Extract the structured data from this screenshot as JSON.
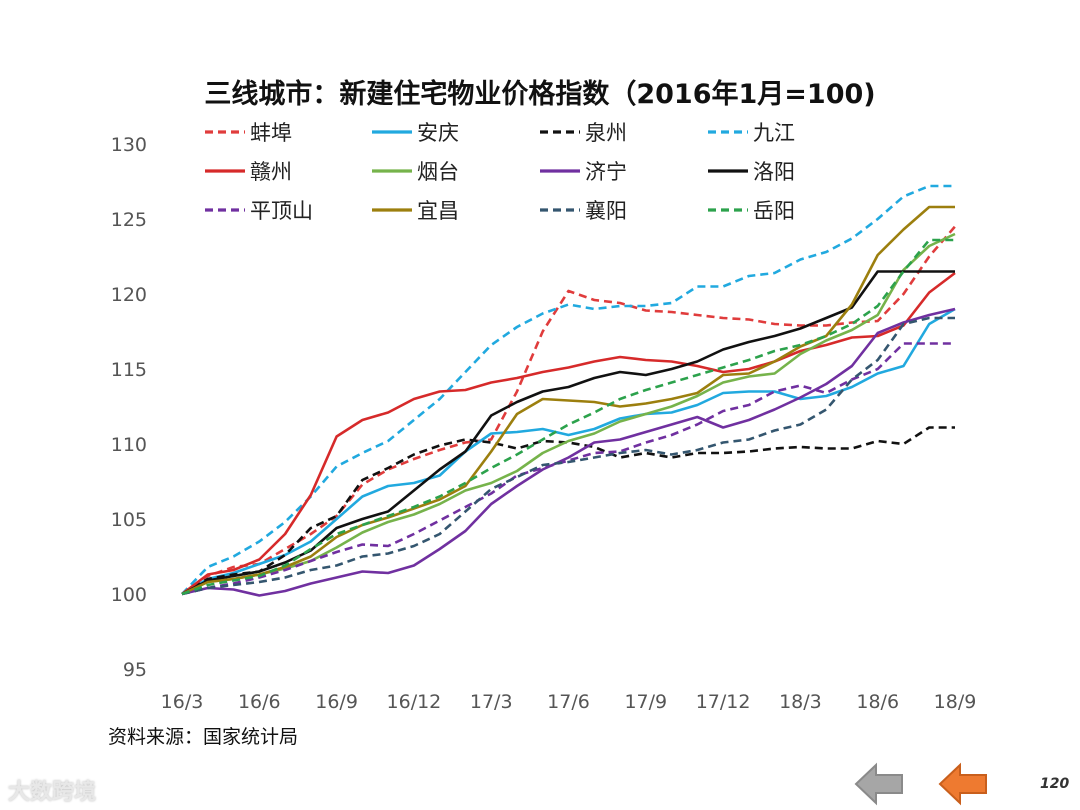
{
  "slide": {
    "title": "三线城市：新建住宅物业价格指数（2016年1月=100)",
    "source": "资料来源：国家统计局",
    "page_number": "120",
    "watermark": "大数跨境"
  },
  "nav": {
    "prev_icon": "arrow-left-icon",
    "next_icon": "arrow-left-icon",
    "prev_color": "#a6a6a6",
    "next_color": "#ee7a30"
  },
  "chart_data": {
    "type": "line",
    "title": "三线城市：新建住宅物业价格指数（2016年1月=100)",
    "xlabel": "",
    "ylabel": "",
    "ylim": [
      95,
      130
    ],
    "yticks": [
      95,
      100,
      105,
      110,
      115,
      120,
      125,
      130
    ],
    "grid": false,
    "legend_position": "top",
    "x": [
      "16/3",
      "16/4",
      "16/5",
      "16/6",
      "16/7",
      "16/8",
      "16/9",
      "16/10",
      "16/11",
      "16/12",
      "17/1",
      "17/2",
      "17/3",
      "17/4",
      "17/5",
      "17/6",
      "17/7",
      "17/8",
      "17/9",
      "17/10",
      "17/11",
      "17/12",
      "18/1",
      "18/2",
      "18/3",
      "18/4",
      "18/5",
      "18/6",
      "18/7",
      "18/8",
      "18/9"
    ],
    "xtick_labels": [
      "16/3",
      "16/6",
      "16/9",
      "16/12",
      "17/3",
      "17/6",
      "17/9",
      "17/12",
      "18/3",
      "18/6",
      "18/9"
    ],
    "series": [
      {
        "name": "蚌埠",
        "color": "#e03c3c",
        "dash": true,
        "values": [
          100,
          101.2,
          101.8,
          102,
          103,
          104,
          105.2,
          107.3,
          108.3,
          109,
          109.6,
          110.1,
          110.3,
          113.5,
          117.5,
          120.2,
          119.6,
          119.4,
          118.9,
          118.8,
          118.6,
          118.4,
          118.3,
          118,
          117.9,
          117.9,
          118.1,
          118.2,
          120,
          122.5,
          124.5
        ]
      },
      {
        "name": "安庆",
        "color": "#21a9df",
        "dash": false,
        "values": [
          100,
          101,
          101.4,
          102,
          102.6,
          103.5,
          105,
          106.5,
          107.2,
          107.4,
          107.9,
          109.5,
          110.7,
          110.8,
          111,
          110.6,
          111,
          111.7,
          112,
          112.1,
          112.6,
          113.4,
          113.5,
          113.5,
          113,
          113.2,
          113.8,
          114.7,
          115.2,
          118,
          119
        ]
      },
      {
        "name": "泉州",
        "color": "#111111",
        "dash": true,
        "values": [
          100,
          101,
          101.3,
          101.5,
          102.6,
          104.4,
          105.2,
          107.6,
          108.4,
          109.3,
          109.9,
          110.3,
          110.1,
          109.7,
          110.2,
          110.1,
          109.8,
          109.1,
          109.4,
          109.1,
          109.4,
          109.4,
          109.5,
          109.7,
          109.8,
          109.7,
          109.7,
          110.2,
          110,
          111.1,
          111.1
        ]
      },
      {
        "name": "九江",
        "color": "#21a9df",
        "dash": true,
        "values": [
          100,
          101.8,
          102.5,
          103.5,
          104.8,
          106.5,
          108.5,
          109.4,
          110.2,
          111.6,
          113,
          114.8,
          116.6,
          117.8,
          118.7,
          119.3,
          119,
          119.2,
          119.2,
          119.4,
          120.5,
          120.5,
          121.2,
          121.4,
          122.3,
          122.8,
          123.7,
          125,
          126.5,
          127.2,
          127.2
        ]
      },
      {
        "name": "赣州",
        "color": "#d62a2a",
        "dash": false,
        "values": [
          100,
          101.3,
          101.6,
          102.3,
          104,
          106.6,
          110.5,
          111.6,
          112.1,
          113,
          113.5,
          113.6,
          114.1,
          114.4,
          114.8,
          115.1,
          115.5,
          115.8,
          115.6,
          115.5,
          115.2,
          114.8,
          115,
          115.5,
          116.2,
          116.6,
          117.1,
          117.2,
          117.9,
          120.1,
          121.4
        ]
      },
      {
        "name": "烟台",
        "color": "#76b34b",
        "dash": false,
        "values": [
          100,
          100.8,
          101,
          101.3,
          101.7,
          102.2,
          103.1,
          104.1,
          104.8,
          105.3,
          106,
          106.9,
          107.4,
          108.2,
          109.4,
          110.2,
          110.7,
          111.5,
          112,
          112.5,
          113.2,
          114.1,
          114.5,
          114.7,
          116,
          116.9,
          117.6,
          118.6,
          121.6,
          123.2,
          124
        ]
      },
      {
        "name": "济宁",
        "color": "#7030a0",
        "dash": false,
        "values": [
          100,
          100.4,
          100.3,
          99.9,
          100.2,
          100.7,
          101.1,
          101.5,
          101.4,
          101.9,
          103,
          104.2,
          106,
          107.2,
          108.3,
          109.1,
          110.1,
          110.3,
          110.8,
          111.3,
          111.8,
          111.1,
          111.6,
          112.3,
          113.1,
          114,
          115.2,
          117.4,
          118.1,
          118.6,
          119
        ]
      },
      {
        "name": "洛阳",
        "color": "#111111",
        "dash": false,
        "values": [
          100,
          100.9,
          101.2,
          101.5,
          102.1,
          102.9,
          104.4,
          105,
          105.5,
          106.9,
          108.3,
          109.5,
          111.9,
          112.8,
          113.5,
          113.8,
          114.4,
          114.8,
          114.6,
          115,
          115.5,
          116.3,
          116.8,
          117.2,
          117.7,
          118.4,
          119.1,
          121.5,
          121.5,
          121.5,
          121.5
        ]
      },
      {
        "name": "平顶山",
        "color": "#7030a0",
        "dash": true,
        "values": [
          100,
          100.4,
          100.7,
          101.1,
          101.6,
          102.2,
          102.8,
          103.3,
          103.2,
          104,
          104.9,
          105.8,
          106.7,
          107.9,
          108.4,
          108.9,
          109.4,
          109.5,
          110.1,
          110.6,
          111.3,
          112.2,
          112.6,
          113.5,
          113.9,
          113.4,
          114.3,
          115,
          116.7,
          116.7,
          116.7
        ]
      },
      {
        "name": "宜昌",
        "color": "#9c7f0e",
        "dash": false,
        "values": [
          100,
          100.8,
          101,
          101.3,
          101.8,
          102.5,
          103.8,
          104.6,
          105.1,
          105.7,
          106.3,
          107.2,
          109.5,
          112,
          113,
          112.9,
          112.8,
          112.5,
          112.7,
          113,
          113.4,
          114.6,
          114.7,
          115.5,
          116.5,
          117.2,
          119.3,
          122.6,
          124.3,
          125.8,
          125.8
        ]
      },
      {
        "name": "襄阳",
        "color": "#34566f",
        "dash": true,
        "values": [
          100,
          100.4,
          100.6,
          100.8,
          101.1,
          101.6,
          101.9,
          102.5,
          102.7,
          103.2,
          104,
          105.5,
          107,
          107.8,
          108.6,
          108.8,
          109.1,
          109.4,
          109.6,
          109.3,
          109.6,
          110.1,
          110.3,
          110.9,
          111.3,
          112.3,
          114.3,
          115.6,
          118,
          118.4,
          118.4
        ]
      },
      {
        "name": "岳阳",
        "color": "#2ca24c",
        "dash": true,
        "values": [
          100,
          100.6,
          100.9,
          101.2,
          101.9,
          103,
          104,
          104.6,
          105.2,
          105.8,
          106.5,
          107.4,
          108.4,
          109.3,
          110.3,
          111.3,
          112.1,
          113,
          113.6,
          114.1,
          114.6,
          115.1,
          115.6,
          116.2,
          116.6,
          117.2,
          118,
          119.2,
          121.5,
          123.6,
          123.6
        ]
      }
    ]
  }
}
